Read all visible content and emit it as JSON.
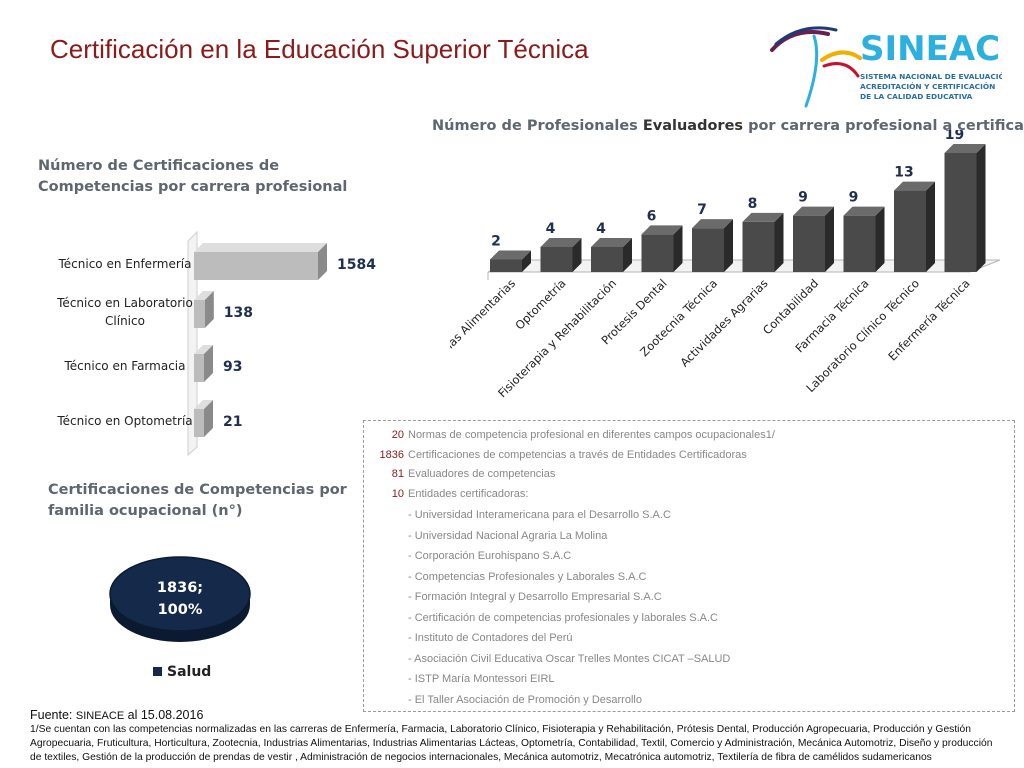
{
  "page": {
    "title": "Certificación en la Educación Superior Técnica",
    "logo": {
      "name": "SINEACE",
      "subtitle_lines": [
        "SISTEMA NACIONAL DE EVALUACIÓN,",
        "ACREDITACIÓN Y CERTIFICACIÓN",
        "DE LA CALIDAD EDUCATIVA"
      ],
      "colors": [
        "#6a1f4f",
        "#1e3a78",
        "#2bb0e0",
        "#f0b000",
        "#c8102e"
      ]
    },
    "evaluadores_title_parts": [
      "Número de Profesionales ",
      "Evaluadores",
      " por carrera profesional a certificar"
    ],
    "certificaciones_title": "Número de Certificaciones de Competencias por carrera profesional",
    "familia_title": "Certificaciones de Competencias por familia ocupacional  (n°)",
    "info": {
      "items": [
        {
          "value": "20",
          "text": "Normas de competencia profesional en diferentes campos ocupacionales1/"
        },
        {
          "value": "1836",
          "text": "Certificaciones de competencias a través de Entidades Certificadoras"
        },
        {
          "value": "81",
          "text": "Evaluadores de competencias"
        },
        {
          "value": "10",
          "text": "Entidades certificadoras:"
        }
      ],
      "entities": [
        "- Universidad Interamericana para el Desarrollo S.A.C",
        "- Universidad Nacional Agraria La Molina",
        "- Corporación Eurohispano S.A.C",
        "- Competencias Profesionales y Laborales S.A.C",
        "- Formación Integral y Desarrollo Empresarial S.A.C",
        "- Certificación de competencias profesionales y laborales S.A.C",
        "- Instituto de Contadores del Perú",
        "- Asociación Civil Educativa Oscar Trelles Montes CICAT –SALUD",
        "- ISTP María Montessori EIRL",
        "- El Taller Asociación de Promoción y Desarrollo"
      ]
    },
    "source": {
      "label": "Fuente: ",
      "org": "SINEACE",
      "rest": " al  15.08.2016"
    },
    "footnote": "1/Se cuentan con las competencias normalizadas en las carreras de Enfermería, Farmacia, Laboratorio Clínico, Fisioterapia y Rehabilitación, Prótesis Dental, Producción Agropecuaria, Producción y Gestión Agropecuaria, Fruticultura, Horticultura, Zootecnia, Industrias Alimentarias, Industrias Alimentarias  Lácteas, Optometría, Contabilidad, Textil, Comercio y Administración, Mecánica Automotriz, Diseño y producción de textiles, Gestión de la producción de prendas de vestir , Administración de negocios internacionales, Mecánica automotriz, Mecatrónica automotriz, Textilería de fibra de camélidos sudamericanos"
  },
  "chart_data": [
    {
      "type": "bar",
      "orientation": "vertical",
      "title": "Número de Profesionales Evaluadores por carrera profesional a certificar",
      "categories": [
        "Industrias Alimentarias",
        "Optometría",
        "Fisioterapia y Rehabilitación",
        "Protesis Dental",
        "Zootecnia Técnica",
        "Actividades Agrarias",
        "Contabilidad",
        "Farmacia Técnica",
        "Laboratorio Clínico Técnico",
        "Enfermería Técnica"
      ],
      "values": [
        2,
        4,
        4,
        6,
        7,
        8,
        9,
        9,
        13,
        19
      ],
      "data_labels": [
        "2",
        "4",
        "4",
        "6",
        "7",
        "8",
        "9",
        "9",
        "13",
        "19"
      ],
      "ylim": [
        0,
        19
      ],
      "grid": false,
      "colors": {
        "bar": "#4a4a4a",
        "bar_side": "#2a2a2a",
        "bar_top": "#6b6b6b",
        "label": "#1f2f4f"
      }
    },
    {
      "type": "bar",
      "orientation": "horizontal",
      "title": "Número de Certificaciones de Competencias por carrera profesional",
      "categories": [
        "Técnico en Enfermería",
        "Técnico en Laboratorio Clínico",
        "Técnico en Farmacia",
        "Técnico en Optometría"
      ],
      "category_lines": [
        [
          "Técnico en Enfermería"
        ],
        [
          "Técnico en Laboratorio",
          "Clínico"
        ],
        [
          "Técnico en Farmacia"
        ],
        [
          "Técnico en Optometría"
        ]
      ],
      "values": [
        1584,
        138,
        93,
        21
      ],
      "data_labels": [
        "1584",
        "138",
        "93",
        "21"
      ],
      "xlim": [
        0,
        1584
      ],
      "grid": false,
      "colors": {
        "bar": "#bcbcbc",
        "bar_side": "#8a8a8a",
        "bar_top": "#dedede",
        "label": "#1f2f4f"
      }
    },
    {
      "type": "pie",
      "title": "Certificaciones de Competencias por familia ocupacional  (n°)",
      "slices": [
        {
          "name": "Salud",
          "value": 1836,
          "percent": 100
        }
      ],
      "data_label_lines": [
        "1836;",
        "100%"
      ],
      "legend": "bottom",
      "legend_entries": [
        "Salud"
      ],
      "colors": {
        "slice": "#15294a",
        "slice_side": "#0b1a30",
        "label": "#ffffff"
      }
    }
  ]
}
